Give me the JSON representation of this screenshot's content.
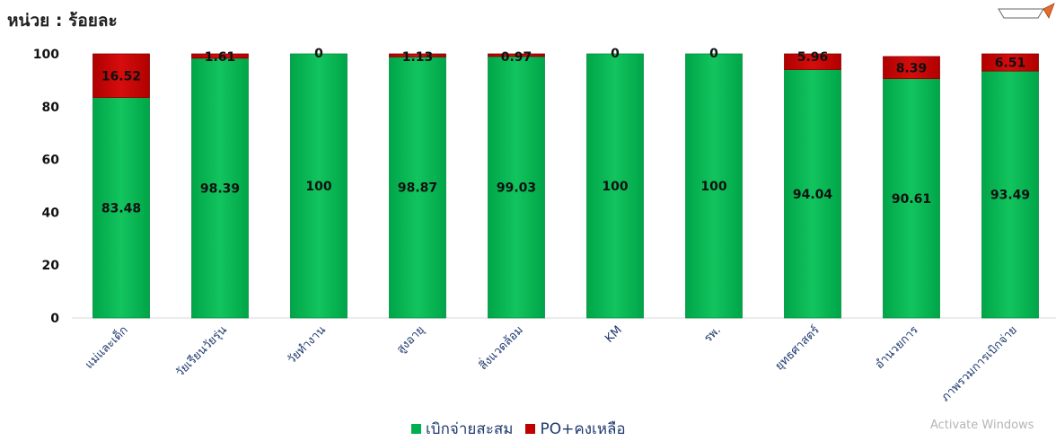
{
  "unit_label": "หน่วย : ร้อยละ",
  "watermark": "Activate Windows",
  "colors": {
    "green": "#00b050",
    "red": "#c00000"
  },
  "chart_data": {
    "type": "bar",
    "stacked": true,
    "title": "",
    "xlabel": "",
    "ylabel": "",
    "ylim": [
      0,
      100
    ],
    "yticks": [
      0,
      20,
      40,
      60,
      80,
      100
    ],
    "grid": false,
    "legend": "bottom",
    "categories": [
      "แม่และเด็ก",
      "วัยเรียนวัยรุ่น",
      "วัยทำงาน",
      "สูงอายุ",
      "สิ่งแวดล้อม",
      "KM",
      "รพ.",
      "ยุทธศาสตร์",
      "อำนวยการ",
      "ภาพรวมการเบิกจ่าย"
    ],
    "series": [
      {
        "name": "เบิกจ่ายสะสม",
        "color": "#00b050",
        "values": [
          83.48,
          98.39,
          100,
          98.87,
          99.03,
          100,
          100,
          94.04,
          90.61,
          93.49
        ],
        "labels": [
          "83.48",
          "98.39",
          "100",
          "98.87",
          "99.03",
          "100",
          "100",
          "94.04",
          "90.61",
          "93.49"
        ]
      },
      {
        "name": "PO+คงเหลือ",
        "color": "#c00000",
        "values": [
          16.52,
          1.61,
          0,
          1.13,
          0.97,
          0,
          0,
          5.96,
          8.39,
          6.51
        ],
        "labels": [
          "16.52",
          "1.61",
          "0",
          "1.13",
          "0.97",
          "0",
          "0",
          "5.96",
          "8.39",
          "6.51"
        ]
      }
    ]
  }
}
